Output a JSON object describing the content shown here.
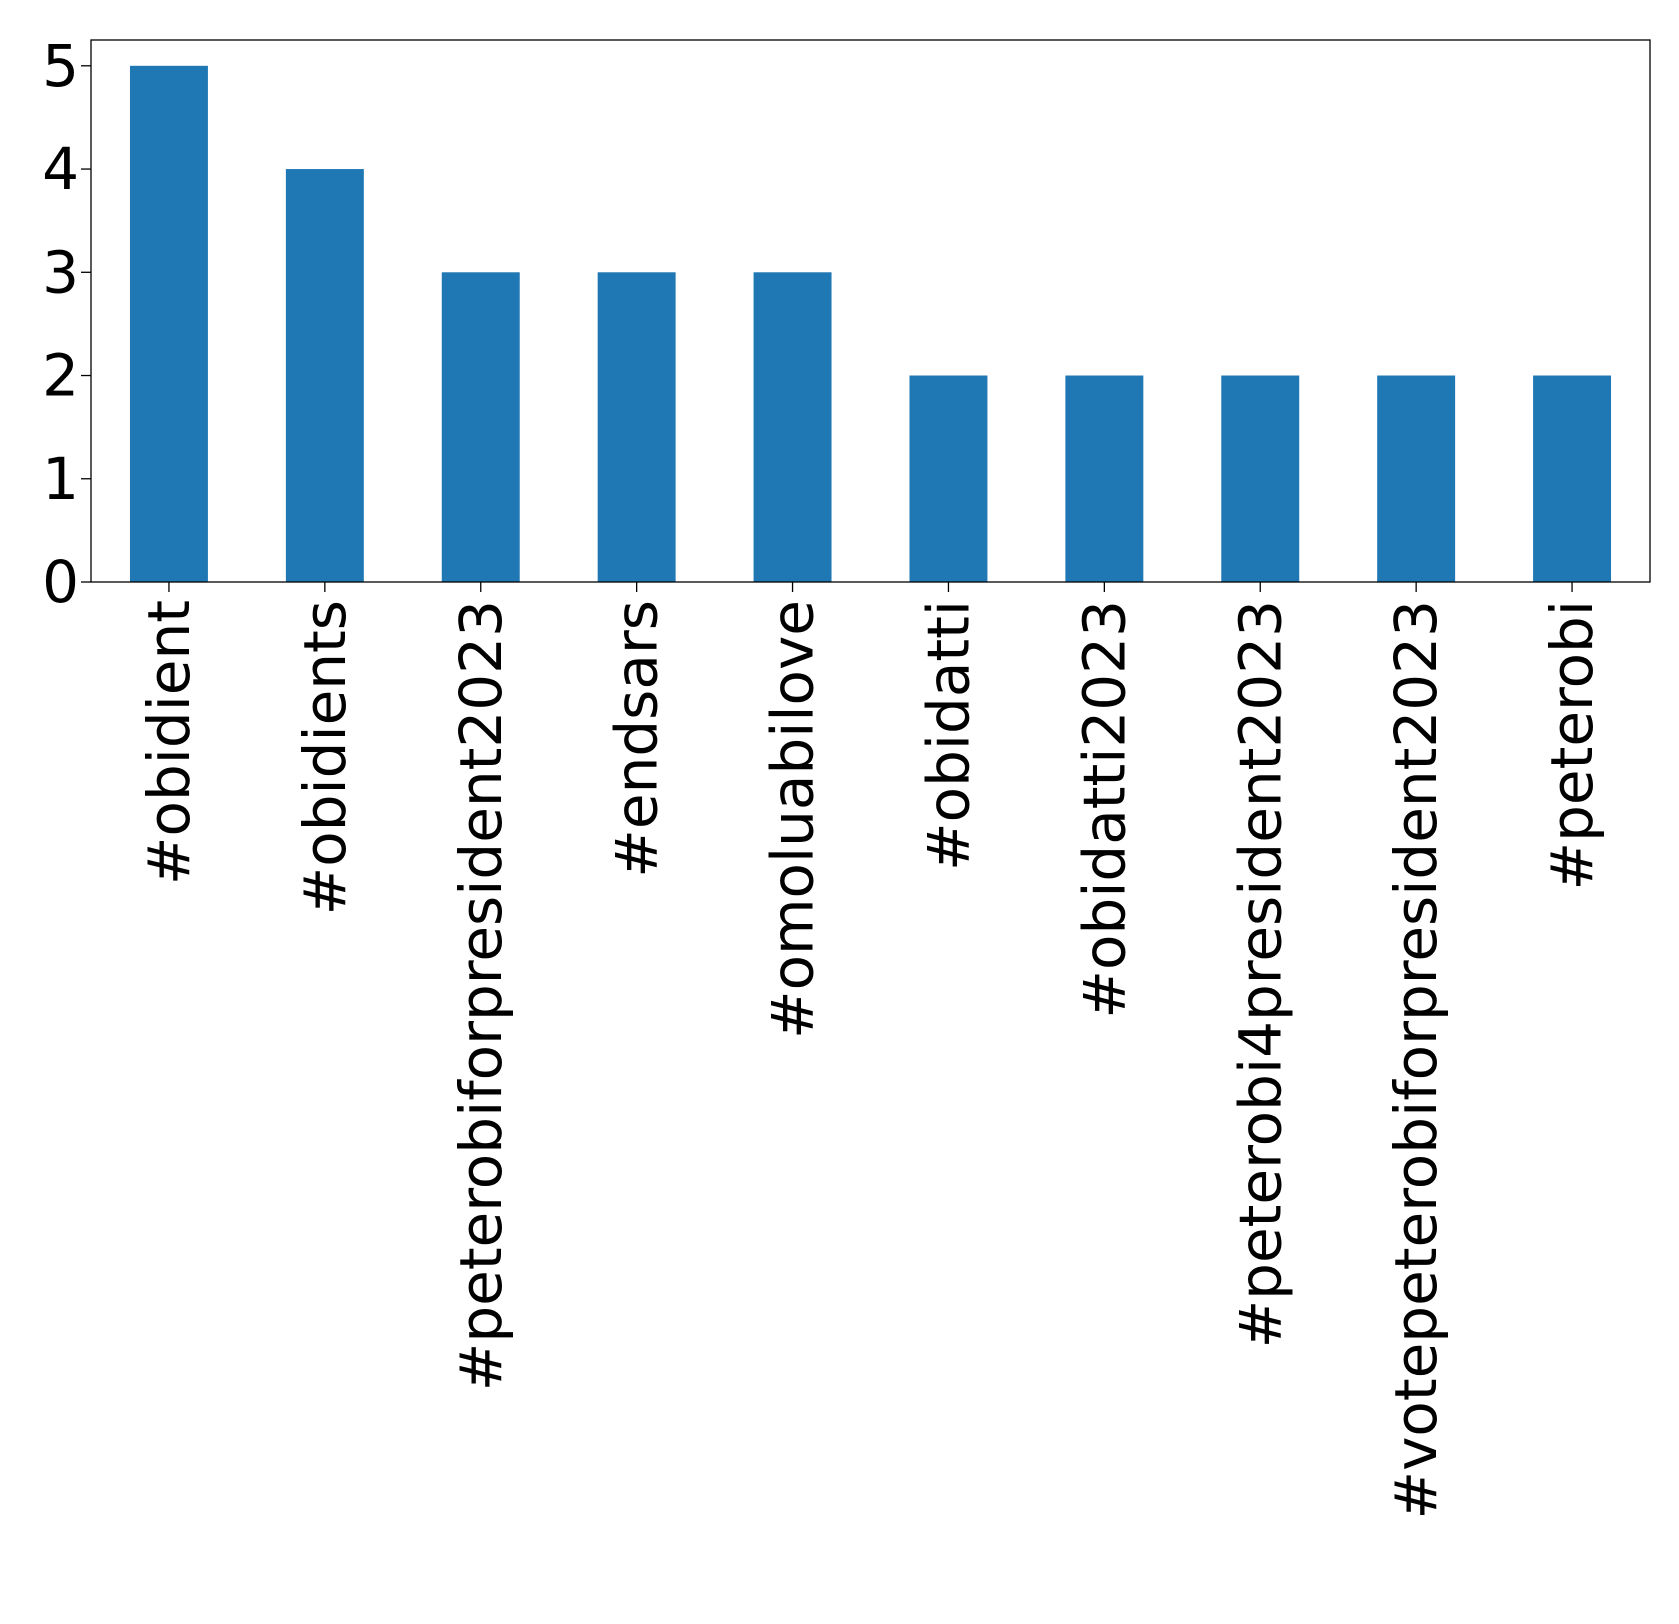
{
  "chart_data": {
    "type": "bar",
    "title": "",
    "xlabel": "",
    "ylabel": "",
    "categories": [
      "#obidient",
      "#obidients",
      "#peterobiforpresident2023",
      "#endsars",
      "#omoluabilove",
      "#obidatti",
      "#obidatti2023",
      "#peterobi4president2023",
      "#votepeterobiforpresident2023",
      "#peterobi"
    ],
    "values": [
      5,
      4,
      3,
      3,
      3,
      2,
      2,
      2,
      2,
      2
    ],
    "ylim": [
      0,
      5.25
    ],
    "yticks": [
      0,
      1,
      2,
      3,
      4,
      5
    ],
    "grid": false,
    "legend": "none",
    "colors": {
      "bar": "#1f77b4",
      "axes": "#000000",
      "background": "#ffffff"
    }
  }
}
